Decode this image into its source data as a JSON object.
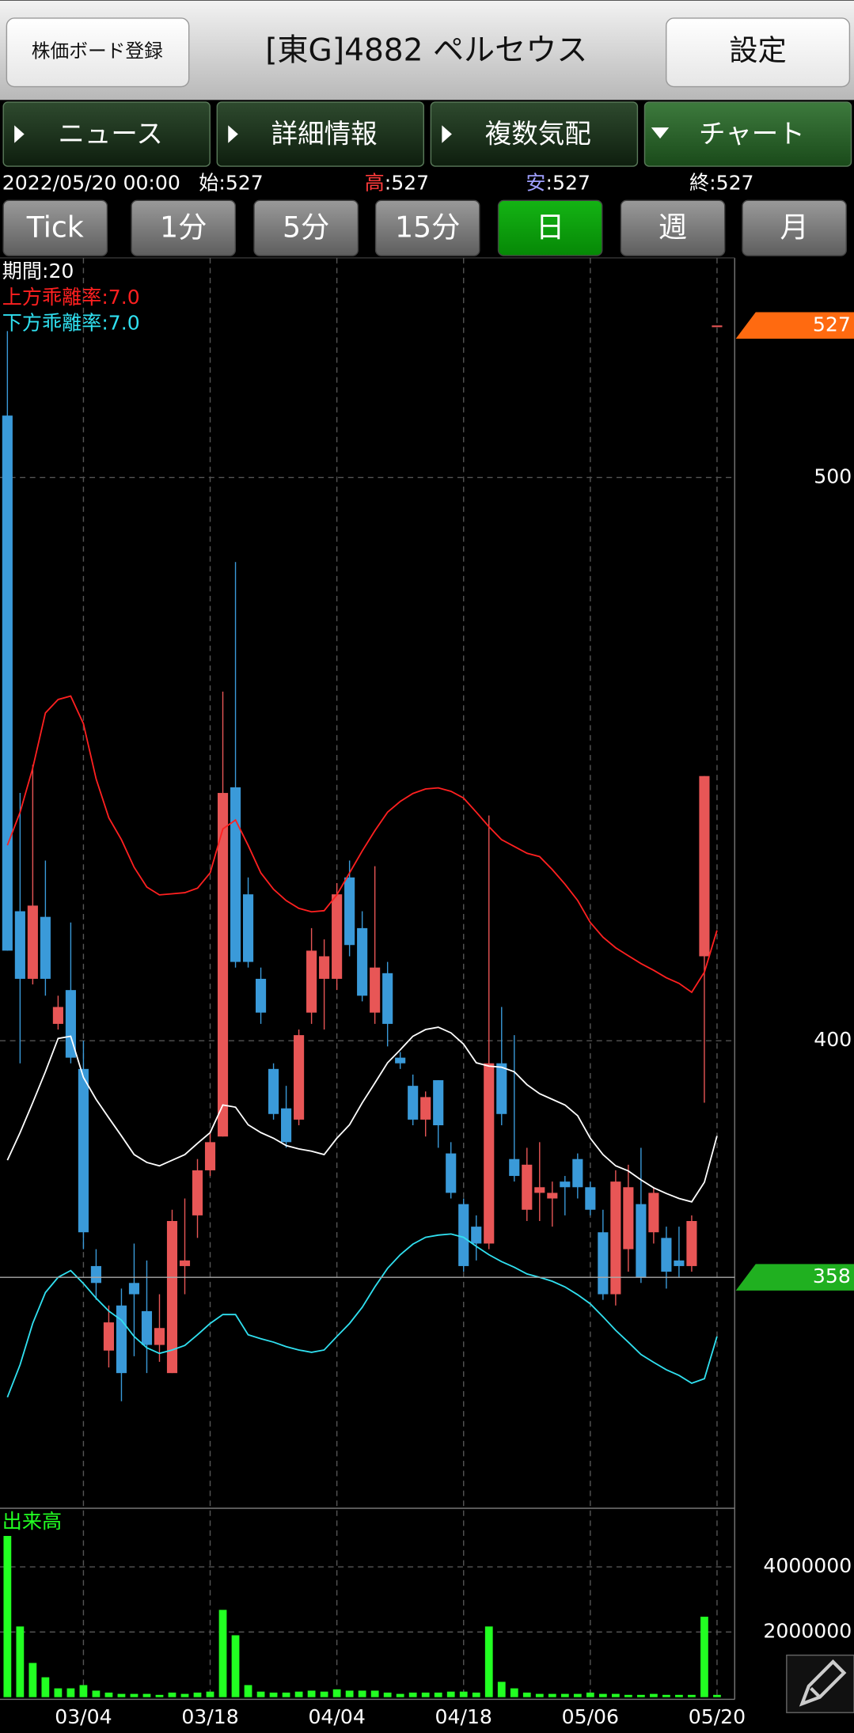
{
  "header": {
    "board_button": "株価ボード登録",
    "title": "[東G]4882 ペルセウス",
    "settings_button": "設定"
  },
  "tabs": [
    {
      "label": "ニュース",
      "active": false
    },
    {
      "label": "詳細情報",
      "active": false
    },
    {
      "label": "複数気配",
      "active": false
    },
    {
      "label": "チャート",
      "active": true
    }
  ],
  "quote": {
    "datetime": "2022/05/20 00:00",
    "separator": ":",
    "items": [
      {
        "label": "始",
        "value": 527,
        "color": "#ffffff"
      },
      {
        "label": "高",
        "value": 527,
        "color": "#ff3b3b"
      },
      {
        "label": "安",
        "value": 527,
        "color": "#a0a0ff"
      },
      {
        "label": "終",
        "value": 527,
        "color": "#ffffff"
      }
    ]
  },
  "periods": [
    {
      "label": "Tick",
      "active": false
    },
    {
      "label": "1分",
      "active": false
    },
    {
      "label": "5分",
      "active": false
    },
    {
      "label": "15分",
      "active": false
    },
    {
      "label": "日",
      "active": true
    },
    {
      "label": "週",
      "active": false
    },
    {
      "label": "月",
      "active": false
    }
  ],
  "chart_data": [
    {
      "type": "candlestick",
      "ylim": [
        317,
        539
      ],
      "yticks": [
        400,
        500
      ],
      "grid": true,
      "up_color": "#e85656",
      "down_color": "#3a9ad9",
      "open": [
        511,
        423,
        411,
        422,
        403,
        409,
        395,
        360,
        345,
        353,
        357,
        352,
        346,
        341,
        360,
        369,
        377,
        383,
        445,
        426,
        411,
        395,
        388,
        386,
        405,
        411,
        411,
        429,
        420,
        405,
        412,
        397,
        392,
        386,
        393,
        380,
        371,
        367,
        364,
        396,
        379,
        370,
        373,
        372,
        375,
        379,
        374,
        366,
        355,
        363,
        371,
        366,
        365,
        361,
        360,
        415,
        527
      ],
      "high": [
        526,
        444,
        449,
        432,
        408,
        421,
        400,
        363,
        353,
        356,
        364,
        361,
        355,
        370,
        372,
        379,
        384,
        462,
        485,
        429,
        413,
        396,
        392,
        402,
        420,
        418,
        428,
        432,
        423,
        431,
        414,
        398,
        394,
        391,
        393,
        382,
        372,
        369,
        440,
        406,
        401,
        381,
        382,
        375,
        376,
        380,
        375,
        370,
        377,
        378,
        381,
        374,
        367,
        367,
        369,
        447,
        527
      ],
      "low": [
        416,
        396,
        410,
        408,
        402,
        396,
        363,
        354,
        342,
        336,
        344,
        341,
        343,
        341,
        355,
        365,
        376,
        383,
        413,
        413,
        403,
        386,
        381,
        385,
        403,
        402,
        409,
        415,
        407,
        403,
        399,
        395,
        385,
        383,
        381,
        372,
        359,
        361,
        363,
        385,
        375,
        368,
        368,
        367,
        369,
        372,
        369,
        354,
        353,
        359,
        357,
        364,
        356,
        358,
        359,
        389,
        527
      ],
      "close": [
        416,
        411,
        424,
        411,
        406,
        397,
        366,
        357,
        350,
        341,
        355,
        346,
        349,
        368,
        361,
        377,
        382,
        444,
        414,
        414,
        405,
        387,
        382,
        401,
        416,
        415,
        426,
        417,
        408,
        413,
        403,
        396,
        386,
        390,
        385,
        373,
        360,
        364,
        396,
        387,
        376,
        378,
        374,
        373,
        374,
        374,
        370,
        355,
        375,
        374,
        358,
        373,
        359,
        360,
        368,
        447,
        527
      ],
      "series": [
        {
          "name": "期間:20",
          "color": "#ffffff",
          "values": [
            378.8,
            383.7,
            389,
            394.5,
            400.4,
            400.8,
            393.5,
            389.6,
            386.3,
            383.1,
            379.8,
            378.4,
            377.8,
            378.8,
            379.8,
            381.8,
            383.7,
            388.6,
            388.2,
            385.1,
            383.7,
            382.7,
            381.4,
            380.8,
            380.4,
            379.8,
            382.7,
            385.1,
            389,
            392.5,
            396.1,
            398.4,
            400.8,
            402,
            402.4,
            401.4,
            399.4,
            396.1,
            395.5,
            395.3,
            394.5,
            392.2,
            390.6,
            389.6,
            388.6,
            386.7,
            382.7,
            379.8,
            377.8,
            376.9,
            375.3,
            373.9,
            372.9,
            372,
            371.4,
            374.9,
            383.1
          ]
        },
        {
          "name": "上方乖離率:7.0",
          "color": "#ff2020",
          "values": [
            434.7,
            440.6,
            448.4,
            458.2,
            460.6,
            461.2,
            456.3,
            446.5,
            439.6,
            435.7,
            430.8,
            427.3,
            425.9,
            426.1,
            426.3,
            427.1,
            429.8,
            437.6,
            439.2,
            434.7,
            429.8,
            426.9,
            424.9,
            423.5,
            422.9,
            423.1,
            425.9,
            429.8,
            433.7,
            437.3,
            440.6,
            442.5,
            443.9,
            444.7,
            444.9,
            444.3,
            443.1,
            440.6,
            438,
            435.7,
            434.5,
            433.3,
            432.7,
            430.4,
            427.8,
            424.9,
            421,
            418.4,
            416.5,
            415.1,
            413.7,
            412.5,
            411.2,
            410.2,
            408.6,
            412.2,
            419.6
          ]
        },
        {
          "name": "下方乖離率:7.0",
          "color": "#30e0f0",
          "values": [
            336.7,
            342.5,
            349.8,
            355.3,
            358,
            359.2,
            356.9,
            354.3,
            352,
            350.4,
            347.5,
            345.5,
            344.5,
            345.1,
            345.9,
            347.8,
            349.8,
            351.4,
            351.4,
            347.8,
            347.1,
            346.5,
            345.7,
            345.1,
            344.7,
            345.1,
            347.5,
            349.8,
            352.7,
            356.3,
            359.6,
            362,
            363.9,
            365.1,
            365.5,
            365.7,
            365.1,
            363.5,
            362,
            360.8,
            359.8,
            358.6,
            358,
            357.3,
            356.3,
            354.9,
            353.3,
            351,
            348.6,
            346.5,
            344.3,
            342.9,
            341.6,
            340.6,
            339.2,
            340,
            347.5
          ]
        }
      ],
      "price_markers": [
        {
          "value": 527,
          "color": "#ff6a10",
          "show_line": false
        },
        {
          "value": 358,
          "color": "#20b020",
          "show_line": true
        }
      ]
    },
    {
      "type": "bar",
      "title": "出来高",
      "color": "#22ff22",
      "ylim": [
        0,
        5800000
      ],
      "yticks": [
        2000000,
        4000000
      ],
      "grid": true,
      "categories": [
        null,
        null,
        null,
        null,
        null,
        null,
        "03/04",
        null,
        null,
        null,
        null,
        null,
        null,
        null,
        null,
        null,
        "03/18",
        null,
        null,
        null,
        null,
        null,
        null,
        null,
        null,
        null,
        "04/04",
        null,
        null,
        null,
        null,
        null,
        null,
        null,
        null,
        null,
        "04/18",
        null,
        null,
        null,
        null,
        null,
        null,
        null,
        null,
        null,
        "05/06",
        null,
        null,
        null,
        null,
        null,
        null,
        null,
        null,
        null,
        "05/20"
      ],
      "values": [
        4950000,
        2170000,
        1050000,
        610000,
        270000,
        270000,
        370000,
        200000,
        140000,
        100000,
        100000,
        100000,
        70000,
        140000,
        100000,
        140000,
        170000,
        2680000,
        1900000,
        370000,
        170000,
        140000,
        140000,
        170000,
        200000,
        170000,
        240000,
        200000,
        200000,
        200000,
        140000,
        100000,
        140000,
        140000,
        140000,
        170000,
        170000,
        140000,
        2170000,
        470000,
        270000,
        140000,
        100000,
        100000,
        100000,
        100000,
        140000,
        100000,
        100000,
        70000,
        70000,
        100000,
        70000,
        70000,
        70000,
        2470000,
        70000
      ]
    }
  ]
}
